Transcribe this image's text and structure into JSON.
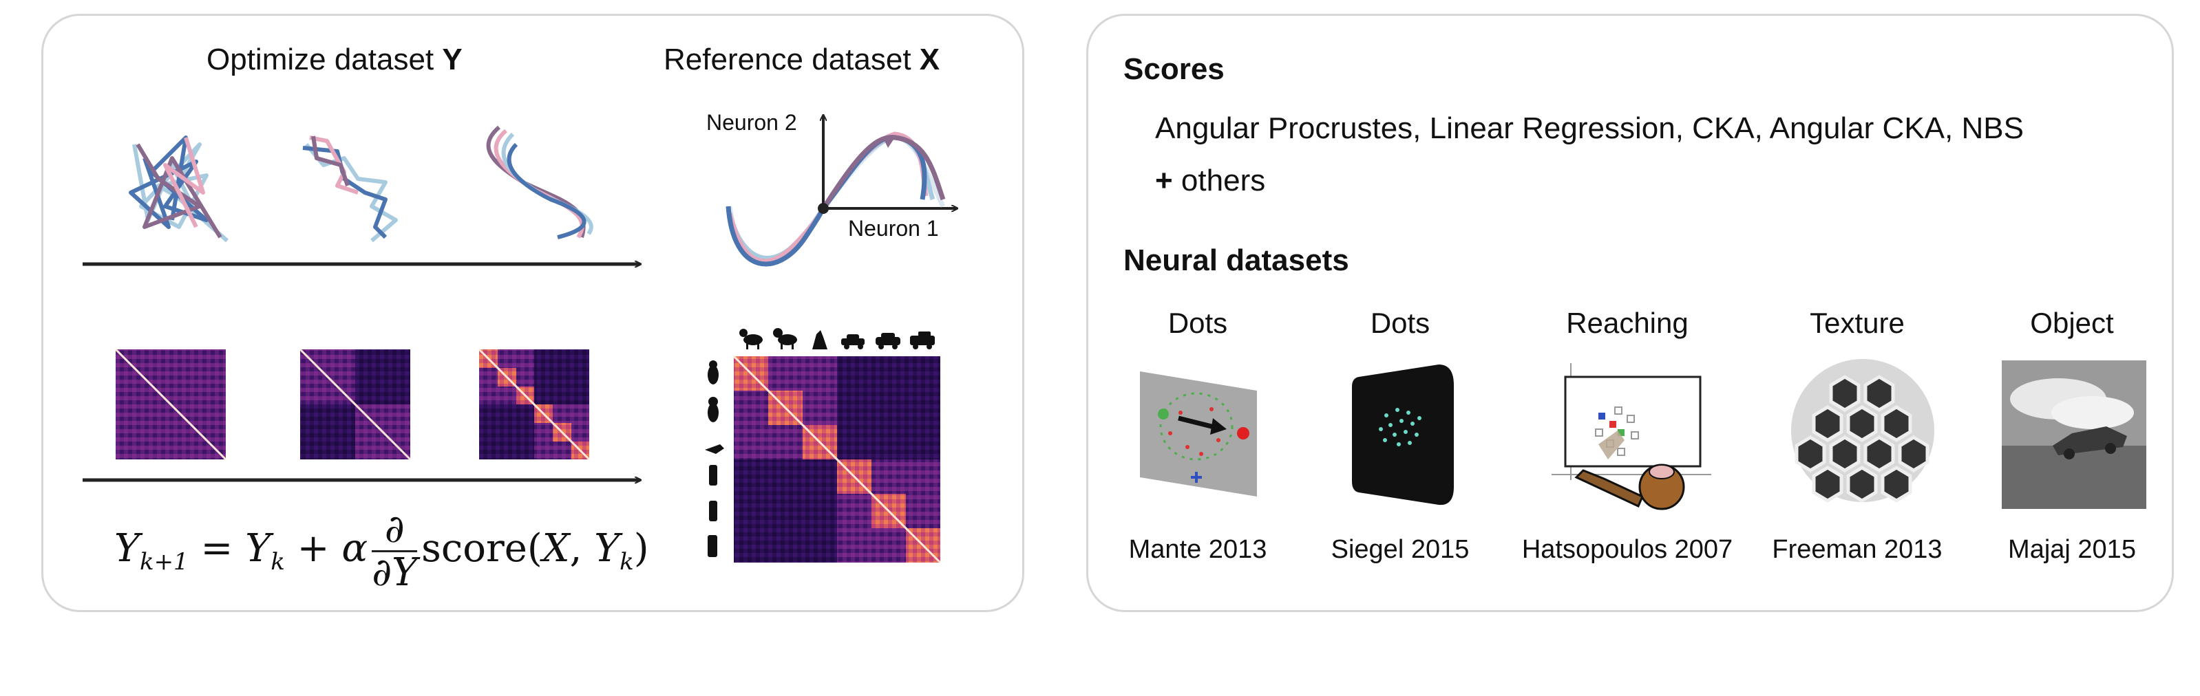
{
  "left": {
    "title_optimize_prefix": "Optimize dataset ",
    "title_optimize_var": "Y",
    "title_reference_prefix": "Reference dataset ",
    "title_reference_var": "X",
    "axis_neuron2": "Neuron 2",
    "axis_neuron1": "Neuron 1",
    "formula": {
      "lhs_Y": "Y",
      "lhs_sub": "k+1",
      "eq": "=",
      "Y": "Y",
      "sub_k": "k",
      "plus": "+",
      "alpha": "α",
      "d_top": "∂",
      "d_bot": "∂Y",
      "score": "score(",
      "X": "X",
      "comma": ", ",
      "Yk": "Y",
      "yk_sub": "k",
      "close": ")"
    },
    "colors": {
      "heatmap_dark": "#2a0f55",
      "heatmap_mid": "#7a2a8a",
      "heatmap_hot": "#f07a52",
      "traj_dark": "#8a6a8c",
      "traj_pink": "#e7a8bd",
      "traj_blue": "#4a74b0",
      "traj_lightblue": "#a9cbe0"
    },
    "icons": [
      "cat-icon",
      "dog-icon",
      "dog-icon",
      "car-icon",
      "car-icon",
      "truck-icon"
    ]
  },
  "right": {
    "scores_heading": "Scores",
    "scores_list": "Angular Procrustes, Linear Regression, CKA, Angular CKA, NBS",
    "others_plus": "+",
    "others_text": " others",
    "datasets_heading": "Neural datasets",
    "datasets": [
      {
        "title": "Dots",
        "caption": "Mante 2013"
      },
      {
        "title": "Dots",
        "caption": "Siegel 2015"
      },
      {
        "title": "Reaching",
        "caption": "Hatsopoulos 2007"
      },
      {
        "title": "Texture",
        "caption": "Freeman 2013"
      },
      {
        "title": "Object",
        "caption": "Majaj 2015"
      }
    ]
  }
}
